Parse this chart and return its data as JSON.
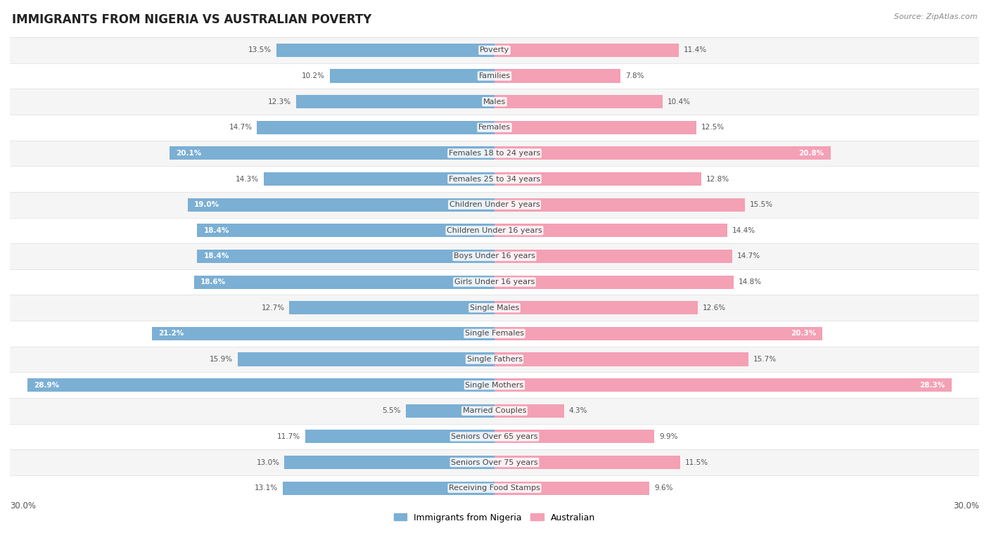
{
  "title": "IMMIGRANTS FROM NIGERIA VS AUSTRALIAN POVERTY",
  "source": "Source: ZipAtlas.com",
  "categories": [
    "Poverty",
    "Families",
    "Males",
    "Females",
    "Females 18 to 24 years",
    "Females 25 to 34 years",
    "Children Under 5 years",
    "Children Under 16 years",
    "Boys Under 16 years",
    "Girls Under 16 years",
    "Single Males",
    "Single Females",
    "Single Fathers",
    "Single Mothers",
    "Married Couples",
    "Seniors Over 65 years",
    "Seniors Over 75 years",
    "Receiving Food Stamps"
  ],
  "nigeria_values": [
    13.5,
    10.2,
    12.3,
    14.7,
    20.1,
    14.3,
    19.0,
    18.4,
    18.4,
    18.6,
    12.7,
    21.2,
    15.9,
    28.9,
    5.5,
    11.7,
    13.0,
    13.1
  ],
  "australian_values": [
    11.4,
    7.8,
    10.4,
    12.5,
    20.8,
    12.8,
    15.5,
    14.4,
    14.7,
    14.8,
    12.6,
    20.3,
    15.7,
    28.3,
    4.3,
    9.9,
    11.5,
    9.6
  ],
  "nigeria_color": "#7bafd4",
  "australian_color": "#f4a0b5",
  "nigeria_label": "Immigrants from Nigeria",
  "australian_label": "Australian",
  "axis_max": 30.0,
  "bar_height": 0.52,
  "row_colors_even": "#f5f5f5",
  "row_colors_odd": "#ffffff",
  "title_fontsize": 12,
  "label_fontsize": 8,
  "value_fontsize": 7.5,
  "background_color": "#ffffff",
  "nigeria_threshold": 16.0,
  "australian_threshold": 16.0
}
